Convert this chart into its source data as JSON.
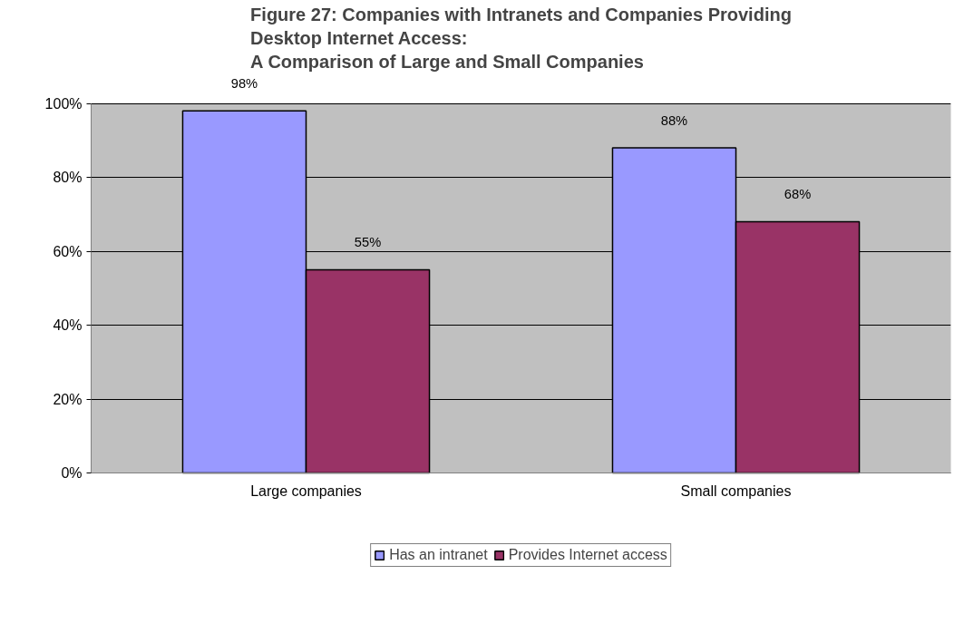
{
  "chart_data": {
    "type": "bar",
    "title": "Figure 27: Companies with Intranets and Companies Providing\nDesktop Internet Access:\nA Comparison of Large and Small Companies",
    "categories": [
      "Large companies",
      "Small companies"
    ],
    "series": [
      {
        "name": "Has an intranet",
        "color": "#9999ff",
        "values": [
          98,
          88
        ],
        "value_labels": [
          "98%",
          "88%"
        ]
      },
      {
        "name": "Provides Internet access",
        "color": "#993366",
        "values": [
          55,
          68
        ],
        "value_labels": [
          "55%",
          "68%"
        ]
      }
    ],
    "ylim": [
      0,
      100
    ],
    "yticks": [
      {
        "value": 0,
        "label": "0%"
      },
      {
        "value": 20,
        "label": "20%"
      },
      {
        "value": 40,
        "label": "40%"
      },
      {
        "value": 60,
        "label": "60%"
      },
      {
        "value": 80,
        "label": "80%"
      },
      {
        "value": 100,
        "label": "100%"
      }
    ],
    "grid": "y",
    "legend": "bottom"
  }
}
